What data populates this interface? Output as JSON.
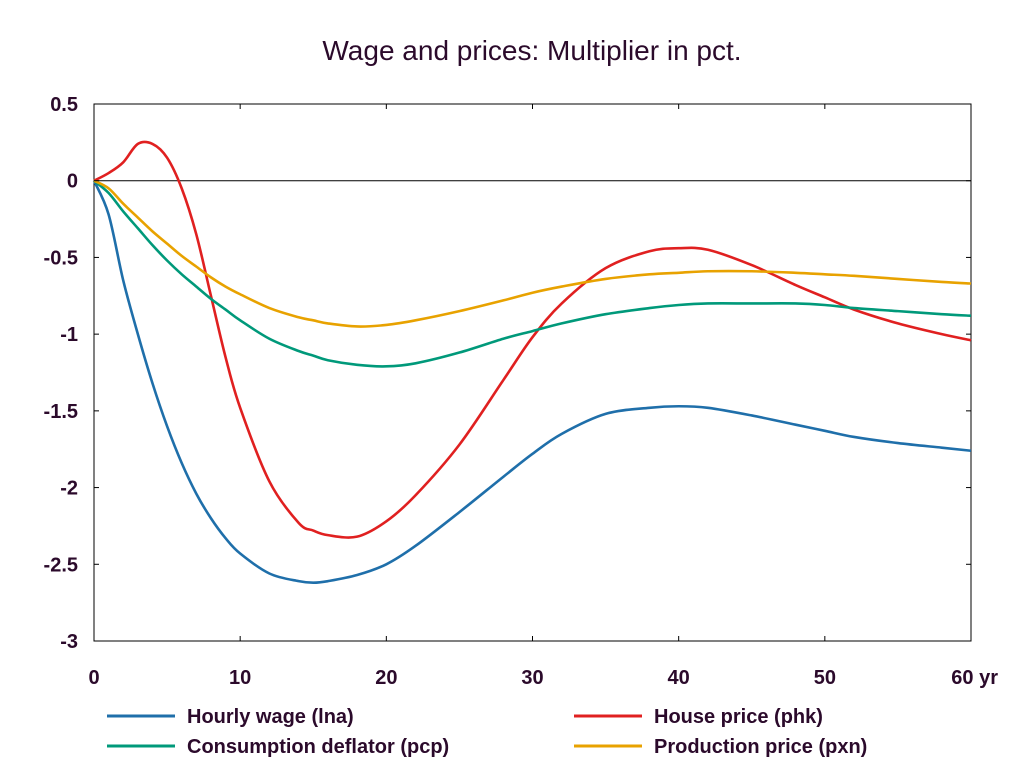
{
  "chart_data": {
    "type": "line",
    "title": "Wage and prices: Multiplier in pct.",
    "xlabel": "",
    "ylabel": "",
    "x_unit_label": "yr",
    "xlim": [
      0,
      60
    ],
    "ylim": [
      -3,
      0.5
    ],
    "x_ticks": [
      0,
      10,
      20,
      30,
      40,
      50,
      60
    ],
    "x_tick_labels": [
      "0",
      "10",
      "20",
      "30",
      "40",
      "50",
      "60 yr"
    ],
    "y_ticks": [
      0.5,
      0,
      -0.5,
      -1,
      -1.5,
      -2,
      -2.5,
      -3
    ],
    "y_tick_labels": [
      "0.5",
      "0",
      "-0.5",
      "-1",
      "-1.5",
      "-2",
      "-2.5",
      "-3"
    ],
    "grid": false,
    "zero_line": true,
    "legend_position": "bottom",
    "x": [
      0,
      1,
      2,
      3,
      4,
      5,
      6,
      7,
      8,
      9,
      10,
      12,
      14,
      15,
      16,
      18,
      20,
      22,
      25,
      28,
      30,
      32,
      35,
      38,
      40,
      42,
      45,
      48,
      50,
      52,
      55,
      58,
      60
    ],
    "series": [
      {
        "name": "Hourly wage (lna)",
        "color": "#1f6faa",
        "values": [
          0,
          -0.22,
          -0.65,
          -1.0,
          -1.32,
          -1.6,
          -1.84,
          -2.04,
          -2.2,
          -2.33,
          -2.43,
          -2.56,
          -2.61,
          -2.62,
          -2.61,
          -2.57,
          -2.5,
          -2.38,
          -2.16,
          -1.93,
          -1.78,
          -1.65,
          -1.52,
          -1.48,
          -1.47,
          -1.48,
          -1.53,
          -1.59,
          -1.63,
          -1.67,
          -1.71,
          -1.74,
          -1.76
        ]
      },
      {
        "name": "House price (phk)",
        "color": "#e02020",
        "values": [
          0,
          0.05,
          0.12,
          0.24,
          0.24,
          0.15,
          -0.05,
          -0.35,
          -0.75,
          -1.15,
          -1.48,
          -1.96,
          -2.23,
          -2.28,
          -2.31,
          -2.32,
          -2.22,
          -2.05,
          -1.72,
          -1.3,
          -1.02,
          -0.8,
          -0.57,
          -0.46,
          -0.44,
          -0.45,
          -0.55,
          -0.68,
          -0.76,
          -0.84,
          -0.93,
          -1.0,
          -1.04
        ]
      },
      {
        "name": "Consumption deflator (pcp)",
        "color": "#00997a",
        "values": [
          0,
          -0.08,
          -0.2,
          -0.31,
          -0.42,
          -0.52,
          -0.61,
          -0.69,
          -0.77,
          -0.84,
          -0.91,
          -1.03,
          -1.11,
          -1.14,
          -1.17,
          -1.2,
          -1.21,
          -1.19,
          -1.12,
          -1.03,
          -0.98,
          -0.93,
          -0.87,
          -0.83,
          -0.81,
          -0.8,
          -0.8,
          -0.8,
          -0.81,
          -0.83,
          -0.85,
          -0.87,
          -0.88
        ]
      },
      {
        "name": "Production price (pxn)",
        "color": "#e8a200",
        "values": [
          0,
          -0.05,
          -0.15,
          -0.24,
          -0.33,
          -0.41,
          -0.49,
          -0.56,
          -0.63,
          -0.69,
          -0.74,
          -0.83,
          -0.89,
          -0.91,
          -0.93,
          -0.95,
          -0.94,
          -0.91,
          -0.85,
          -0.78,
          -0.73,
          -0.69,
          -0.64,
          -0.61,
          -0.6,
          -0.59,
          -0.59,
          -0.6,
          -0.61,
          -0.62,
          -0.64,
          -0.66,
          -0.67
        ]
      }
    ],
    "legend_order": [
      0,
      2,
      1,
      3
    ]
  }
}
